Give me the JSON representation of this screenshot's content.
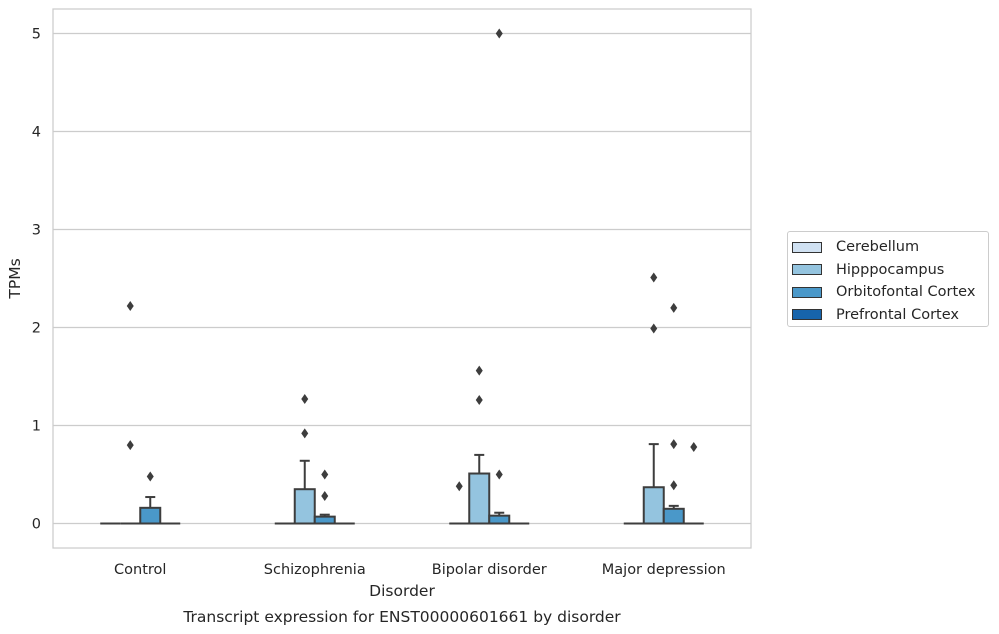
{
  "chart_data": {
    "type": "box",
    "title": "Transcript expression for ENST00000601661 by disorder",
    "xlabel": "Disorder",
    "ylabel": "TPMs",
    "ylim": [
      -0.25,
      5.25
    ],
    "yticks": [
      0,
      1,
      2,
      3,
      4,
      5
    ],
    "grid": true,
    "legend_position": "right",
    "categories": [
      "Control",
      "Schizophrenia",
      "Bipolar disorder",
      "Major depression"
    ],
    "series": [
      {
        "name": "Cerebellum",
        "color": "#d0e1f2",
        "boxes": [
          {
            "q1": 0,
            "median": 0,
            "q3": 0,
            "whisker_low": 0,
            "whisker_high": 0,
            "outliers": []
          },
          {
            "q1": 0,
            "median": 0,
            "q3": 0,
            "whisker_low": 0,
            "whisker_high": 0,
            "outliers": []
          },
          {
            "q1": 0,
            "median": 0,
            "q3": 0,
            "whisker_low": 0,
            "whisker_high": 0,
            "outliers": [
              0.38
            ]
          },
          {
            "q1": 0,
            "median": 0,
            "q3": 0,
            "whisker_low": 0,
            "whisker_high": 0,
            "outliers": []
          }
        ]
      },
      {
        "name": "Hipppocampus",
        "color": "#94c4df",
        "boxes": [
          {
            "q1": 0,
            "median": 0,
            "q3": 0,
            "whisker_low": 0,
            "whisker_high": 0,
            "outliers": [
              0.8,
              2.22
            ]
          },
          {
            "q1": 0,
            "median": 0,
            "q3": 0.35,
            "whisker_low": 0,
            "whisker_high": 0.64,
            "outliers": [
              0.92,
              1.27
            ]
          },
          {
            "q1": 0,
            "median": 0,
            "q3": 0.51,
            "whisker_low": 0,
            "whisker_high": 0.7,
            "outliers": [
              1.26,
              1.56
            ]
          },
          {
            "q1": 0,
            "median": 0,
            "q3": 0.37,
            "whisker_low": 0,
            "whisker_high": 0.81,
            "outliers": [
              1.99,
              2.51
            ]
          }
        ]
      },
      {
        "name": "Orbitofontal Cortex",
        "color": "#4a98c9",
        "boxes": [
          {
            "q1": 0,
            "median": 0,
            "q3": 0.16,
            "whisker_low": 0,
            "whisker_high": 0.27,
            "outliers": [
              0.48
            ]
          },
          {
            "q1": 0,
            "median": 0,
            "q3": 0.07,
            "whisker_low": 0,
            "whisker_high": 0.09,
            "outliers": [
              0.28,
              0.5
            ]
          },
          {
            "q1": 0,
            "median": 0,
            "q3": 0.08,
            "whisker_low": 0,
            "whisker_high": 0.11,
            "outliers": [
              0.5,
              5.0
            ]
          },
          {
            "q1": 0,
            "median": 0,
            "q3": 0.15,
            "whisker_low": 0,
            "whisker_high": 0.18,
            "outliers": [
              0.39,
              0.81,
              2.2
            ]
          }
        ]
      },
      {
        "name": "Prefrontal Cortex",
        "color": "#1764ab",
        "boxes": [
          {
            "q1": 0,
            "median": 0,
            "q3": 0,
            "whisker_low": 0,
            "whisker_high": 0,
            "outliers": []
          },
          {
            "q1": 0,
            "median": 0,
            "q3": 0,
            "whisker_low": 0,
            "whisker_high": 0,
            "outliers": []
          },
          {
            "q1": 0,
            "median": 0,
            "q3": 0,
            "whisker_low": 0,
            "whisker_high": 0,
            "outliers": []
          },
          {
            "q1": 0,
            "median": 0,
            "q3": 0,
            "whisker_low": 0,
            "whisker_high": 0,
            "outliers": [
              0.78
            ]
          }
        ]
      }
    ]
  }
}
